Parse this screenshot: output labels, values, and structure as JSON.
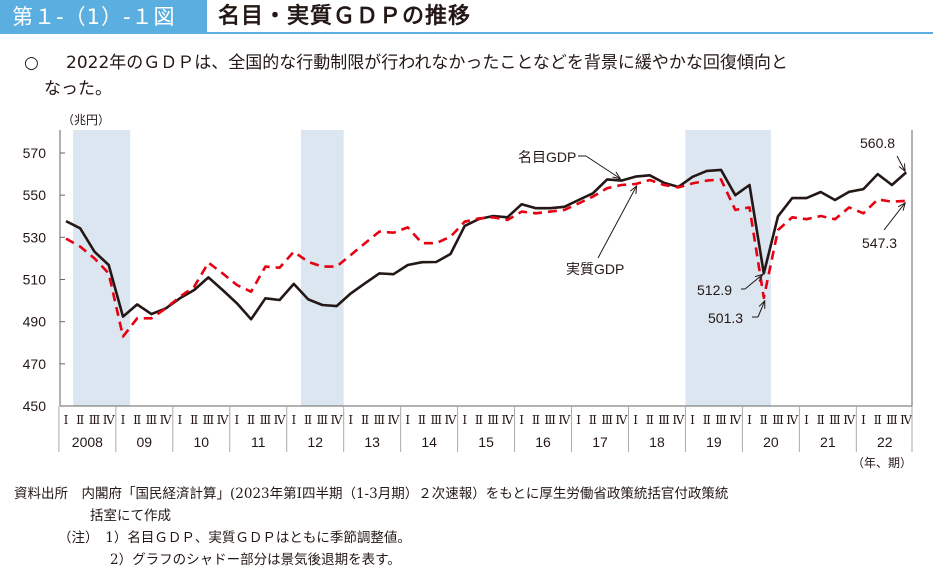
{
  "header": {
    "figure_number": "第１-（1）-１図",
    "title": "名目・実質ＧＤＰの推移"
  },
  "summary": {
    "bullet": "○",
    "text_line1": "2022年のＧＤＰは、全国的な行動制限が行われなかったことなどを背景に緩やかな回復傾向と",
    "text_line2": "なった。"
  },
  "notes": {
    "source_line1": "資料出所　内閣府「国民経済計算」(2023年第Ⅰ四半期（1-3月期）２次速報）をもとに厚生労働省政策統括官付政策統",
    "source_line2": "括室にて作成",
    "note1": "（注）　1）名目ＧＤＰ、実質ＧＤＰはともに季節調整値。",
    "note2": "2）グラフのシャドー部分は景気後退期を表す。"
  },
  "colors": {
    "nominal": "#231815",
    "real": "#e60012",
    "shade": "#dce6f0",
    "accent": "#5aaee0"
  },
  "chart_data": {
    "type": "line",
    "ylabel": "（兆円）",
    "xlabel": "（年、期）",
    "ylim": [
      450,
      570
    ],
    "yticks": [
      450,
      470,
      490,
      510,
      530,
      550,
      570
    ],
    "years": [
      "2008",
      "09",
      "10",
      "11",
      "12",
      "13",
      "14",
      "15",
      "16",
      "17",
      "18",
      "19",
      "20",
      "21",
      "22"
    ],
    "quarter_labels": [
      "Ⅰ",
      "Ⅱ",
      "Ⅲ",
      "Ⅳ"
    ],
    "recession_shading_quarter_index": [
      [
        0.5,
        4.5
      ],
      [
        16.5,
        19.5
      ],
      [
        43.5,
        49.5
      ]
    ],
    "series": [
      {
        "name": "名目GDP",
        "style": "solid",
        "values": [
          537.7,
          534.3,
          523.2,
          516.9,
          492.4,
          498.2,
          493.6,
          496.3,
          501.1,
          505.0,
          511.0,
          505.0,
          498.7,
          491.1,
          501.1,
          500.3,
          507.9,
          500.6,
          497.9,
          497.4,
          503.4,
          508.2,
          512.9,
          512.5,
          516.9,
          518.2,
          518.3,
          522.1,
          535.4,
          538.7,
          540.1,
          539.5,
          545.7,
          543.8,
          543.8,
          544.5,
          547.7,
          550.9,
          557.5,
          556.9,
          558.8,
          559.4,
          555.8,
          553.9,
          558.7,
          561.5,
          562.0,
          550.0,
          554.8,
          512.9,
          540.0,
          548.6,
          548.6,
          551.5,
          547.7,
          551.6,
          552.9,
          560.0,
          554.8,
          560.8
        ]
      },
      {
        "name": "実質GDP",
        "style": "dashed",
        "values": [
          529.4,
          525.6,
          520.0,
          512.9,
          482.9,
          491.6,
          491.6,
          496.3,
          501.8,
          506.6,
          518.0,
          512.9,
          507.4,
          504.2,
          516.1,
          515.6,
          523.2,
          518.4,
          516.1,
          516.1,
          521.6,
          527.2,
          532.7,
          532.2,
          534.7,
          527.2,
          527.2,
          530.3,
          537.4,
          539.0,
          539.5,
          538.2,
          542.2,
          541.4,
          542.2,
          543.0,
          546.1,
          549.3,
          553.3,
          554.8,
          555.3,
          557.2,
          554.8,
          553.7,
          555.6,
          556.9,
          557.5,
          543.0,
          544.2,
          501.3,
          533.5,
          539.5,
          538.6,
          540.1,
          538.6,
          544.2,
          541.4,
          548.0,
          546.9,
          547.3
        ]
      }
    ],
    "annotations": [
      {
        "text": "名目GDP",
        "target": "nominal-2017Q4"
      },
      {
        "text": "実質GDP",
        "target": "real-2018Q1"
      },
      {
        "text": "512.9",
        "target": "nominal-2020Q2"
      },
      {
        "text": "501.3",
        "target": "real-2020Q2"
      },
      {
        "text": "560.8",
        "target": "nominal-2022Q4"
      },
      {
        "text": "547.3",
        "target": "real-2022Q4"
      }
    ]
  }
}
